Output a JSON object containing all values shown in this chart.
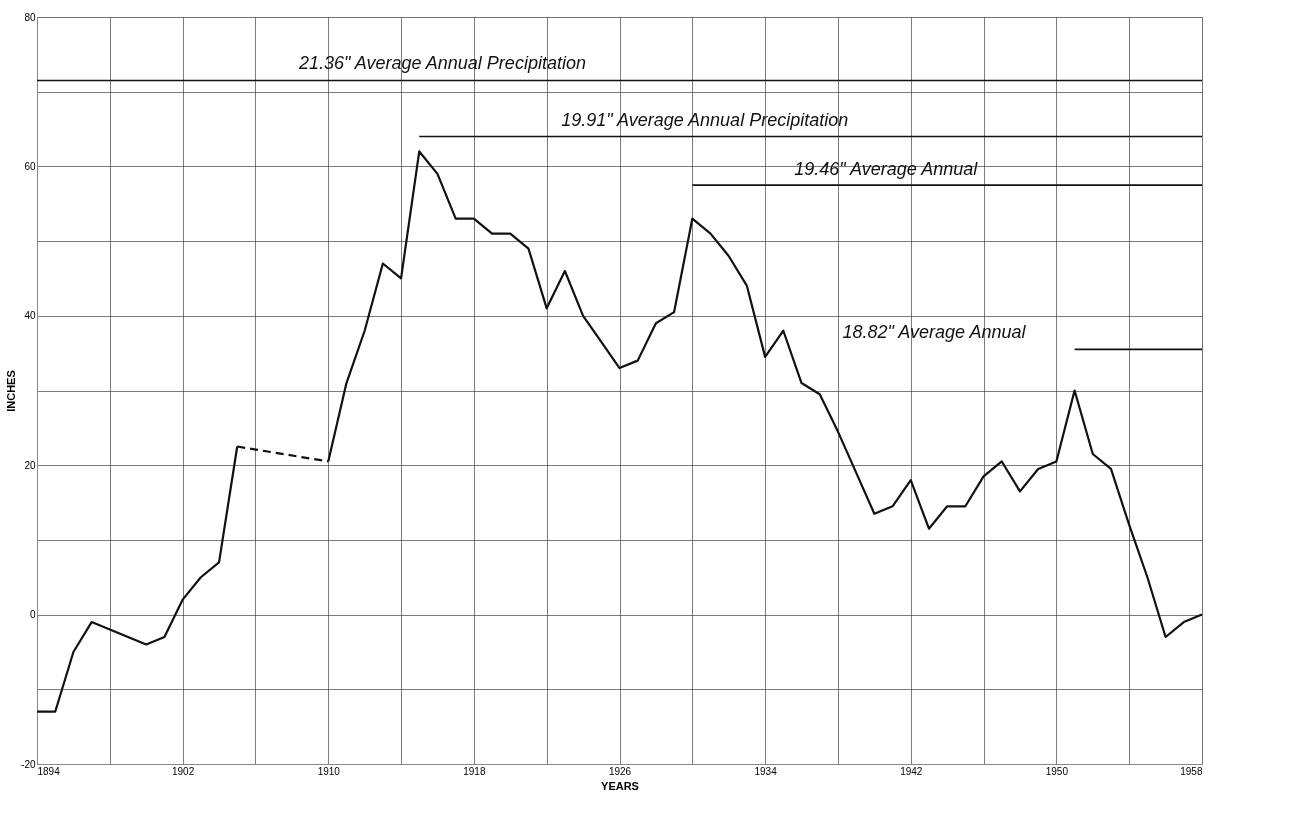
{
  "chart_data": {
    "type": "line",
    "xlabel": "YEARS",
    "ylabel": "INCHES",
    "xlim": [
      1894,
      1958
    ],
    "ylim": [
      -20,
      80
    ],
    "xticks": [
      1894,
      {
        "value": 1898,
        "label": null
      },
      1902,
      {
        "value": 1906,
        "label": null
      },
      1910,
      {
        "value": 1914,
        "label": null
      },
      1918,
      {
        "value": 1922,
        "label": null
      },
      1926,
      {
        "value": 1930,
        "label": null
      },
      1934,
      {
        "value": 1938,
        "label": null
      },
      1942,
      {
        "value": 1946,
        "label": null
      },
      1950,
      {
        "value": 1954,
        "label": null
      },
      1958
    ],
    "yticks": [
      -20,
      {
        "value": -10,
        "label": null
      },
      0,
      {
        "value": 10,
        "label": null
      },
      20,
      {
        "value": 30,
        "label": null
      },
      40,
      {
        "value": 50,
        "label": null
      },
      60,
      {
        "value": 70,
        "label": null
      },
      80
    ],
    "grid": true,
    "series": [
      {
        "color": "#111111",
        "line_style": "solid",
        "x": [
          1894,
          1895,
          1896,
          1897,
          1898,
          1899,
          1900,
          1901,
          1902,
          1903,
          1904,
          1905
        ],
        "values": [
          -13,
          -13,
          -5,
          -1,
          -2,
          -3,
          -4,
          -3,
          2,
          5,
          7,
          22.5
        ]
      },
      {
        "color": "#111111",
        "line_style": "dashed",
        "x": [
          1905,
          1910
        ],
        "values": [
          22.5,
          20.5
        ]
      },
      {
        "color": "#111111",
        "line_style": "solid",
        "x": [
          1910,
          1911,
          1912,
          1913,
          1914,
          1915,
          1916,
          1917,
          1918,
          1919,
          1920,
          1921,
          1922,
          1923,
          1924,
          1925,
          1926,
          1927,
          1928,
          1929,
          1930,
          1931,
          1932,
          1933,
          1934,
          1935,
          1936,
          1937,
          1938,
          1939,
          1940,
          1941,
          1942,
          1943,
          1944,
          1945,
          1946,
          1947,
          1948,
          1949,
          1950,
          1951,
          1952,
          1953,
          1954,
          1955,
          1956,
          1957,
          1958
        ],
        "values": [
          20.5,
          31,
          38,
          47,
          45,
          62,
          59,
          53,
          53,
          51,
          51,
          49,
          41,
          46,
          40,
          36.5,
          33,
          34,
          39,
          40.5,
          53,
          51,
          48,
          44,
          34.5,
          38,
          31,
          29.5,
          24.5,
          19,
          13.5,
          14.5,
          18,
          11.5,
          14.5,
          14.5,
          18.5,
          20.5,
          16.5,
          19.5,
          20.5,
          30,
          21.5,
          19.5,
          12,
          5,
          -3,
          -1,
          0
        ]
      },
      {
        "type": "line",
        "name": "21.36\" Average Annual Precipitation",
        "color": "#111111",
        "line_style": "solid",
        "x": [
          1894,
          1958
        ],
        "values": [
          71.5,
          71.5
        ]
      },
      {
        "type": "line",
        "name": "19.91\" Average Annual Precipitation",
        "color": "#111111",
        "line_style": "solid",
        "x": [
          1915,
          1958
        ],
        "values": [
          64,
          64
        ]
      },
      {
        "type": "line",
        "name": "19.46\" Average Annual",
        "color": "#111111",
        "line_style": "solid",
        "x": [
          1930,
          1958
        ],
        "values": [
          57.5,
          57.5
        ]
      },
      {
        "type": "line",
        "name": "18.82\" Average Annual",
        "color": "#111111",
        "line_style": "solid",
        "x": [
          1951,
          1958
        ],
        "values": [
          35.5,
          35.5
        ]
      }
    ]
  }
}
